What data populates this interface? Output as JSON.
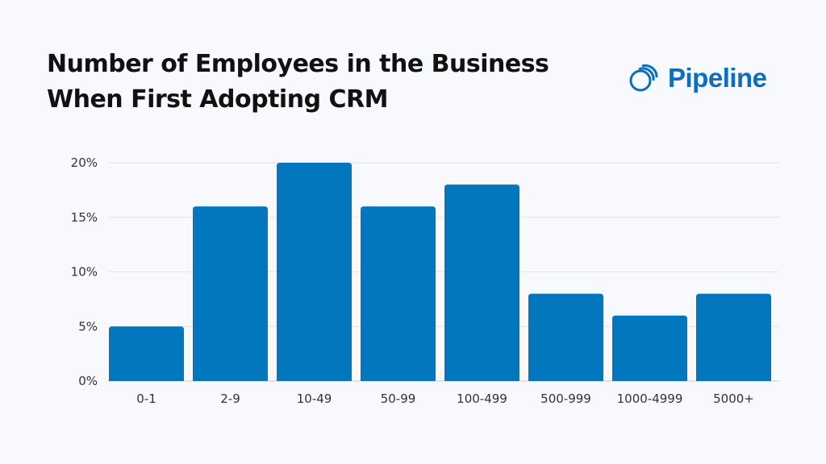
{
  "brand": {
    "name": "Pipeline",
    "color": "#0a6fbf"
  },
  "chart_data": {
    "type": "bar",
    "title": "Number of Employees in the Business When First Adopting CRM",
    "title_lines": [
      "Number of Employees in the Business",
      "When First Adopting CRM"
    ],
    "categories": [
      "0-1",
      "2-9",
      "10-49",
      "50-99",
      "100-499",
      "500-999",
      "1000-4999",
      "5000+"
    ],
    "values": [
      5,
      16,
      20,
      16,
      18,
      8,
      6,
      8
    ],
    "unit": "%",
    "xlabel": "",
    "ylabel": "",
    "ylim": [
      0,
      20
    ],
    "yticks": [
      "0%",
      "5%",
      "10%",
      "15%",
      "20%"
    ],
    "grid": true,
    "bar_color": "#0277bd"
  }
}
